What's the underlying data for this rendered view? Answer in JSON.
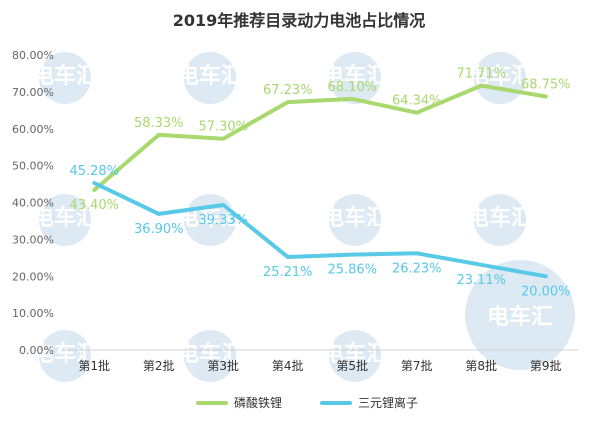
{
  "chart_data": {
    "type": "line",
    "title": "2019年推荐目录动力电池占比情况",
    "categories": [
      "第1批",
      "第2批",
      "第3批",
      "第4批",
      "第5批",
      "第7批",
      "第8批",
      "第9批"
    ],
    "y_ticks": [
      "0.00%",
      "10.00%",
      "20.00%",
      "30.00%",
      "40.00%",
      "50.00%",
      "60.00%",
      "70.00%",
      "80.00%"
    ],
    "ylim": [
      0,
      80
    ],
    "grid": false,
    "legend_position": "bottom",
    "series": [
      {
        "name": "磷酸铁锂",
        "color": "#a9d86e",
        "values": [
          43.4,
          58.33,
          57.3,
          67.23,
          68.1,
          64.34,
          71.71,
          68.75
        ],
        "labels": [
          "43.40%",
          "58.33%",
          "57.30%",
          "67.23%",
          "68.10%",
          "64.34%",
          "71.71%",
          "68.75%"
        ]
      },
      {
        "name": "三元锂离子",
        "color": "#58c9e6",
        "values": [
          45.28,
          36.9,
          39.33,
          25.21,
          25.86,
          26.23,
          23.11,
          20.0
        ],
        "labels": [
          "45.28%",
          "36.90%",
          "39.33%",
          "25.21%",
          "25.86%",
          "26.23%",
          "23.11%",
          "20.00%"
        ]
      }
    ]
  },
  "watermark": {
    "text": "电车汇",
    "color": "#9fc3de"
  }
}
